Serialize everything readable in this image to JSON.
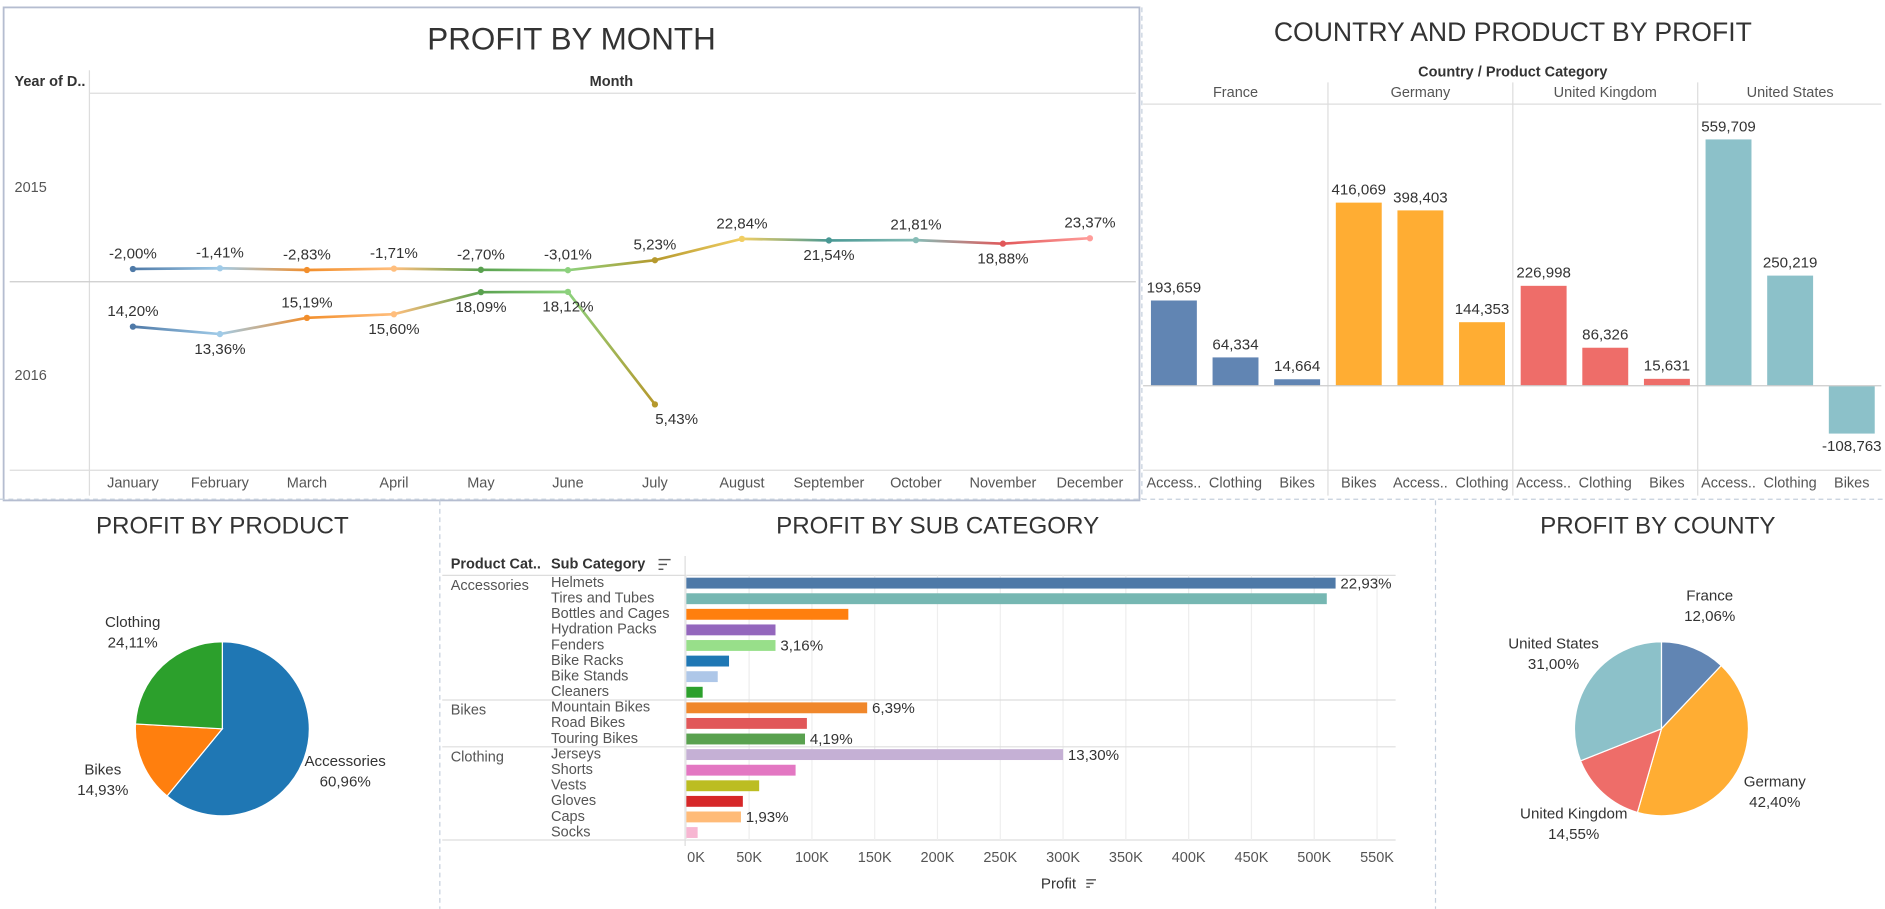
{
  "chart_data": [
    {
      "type": "line",
      "title": "PROFIT BY MONTH",
      "row_header": "Year of D..",
      "column_header": "Month",
      "categories": [
        "January",
        "February",
        "March",
        "April",
        "May",
        "June",
        "July",
        "August",
        "September",
        "October",
        "November",
        "December"
      ],
      "point_colors": [
        "#4e79a7",
        "#a0cbe8",
        "#f28e2b",
        "#ffbe7d",
        "#59a14f",
        "#8cd17d",
        "#b6992d",
        "#f1ce63",
        "#499894",
        "#86bcb6",
        "#e15759",
        "#ff9d9a"
      ],
      "series": [
        {
          "name": "2015",
          "ylim": [
            -13,
            142
          ],
          "values": [
            -2.0,
            -1.41,
            -2.83,
            -1.71,
            -2.7,
            -3.01,
            5.23,
            22.84,
            21.54,
            21.81,
            18.88,
            23.37
          ],
          "value_labels": [
            "-2,00%",
            "-1,41%",
            "-2,83%",
            "-1,71%",
            "-2,70%",
            "-3,01%",
            "5,23%",
            "22,84%",
            "21,54%",
            "21,81%",
            "18,88%",
            "23,37%"
          ]
        },
        {
          "name": "2016",
          "ylim": [
            -2,
            19.2
          ],
          "values": [
            14.2,
            13.36,
            15.19,
            15.6,
            18.09,
            18.12,
            5.43,
            null,
            null,
            null,
            null,
            null
          ],
          "value_labels": [
            "14,20%",
            "13,36%",
            "15,19%",
            "15,60%",
            "18,09%",
            "18,12%",
            "5,43%",
            null,
            null,
            null,
            null,
            null
          ]
        }
      ]
    },
    {
      "type": "bar",
      "title": "COUNTRY AND PRODUCT BY PROFIT",
      "header": "Country / Product Category",
      "ylim": [
        -192000,
        640000
      ],
      "groups": [
        {
          "name": "France",
          "color": "#6185b3",
          "categories": [
            "Access..",
            "Clothing",
            "Bikes"
          ],
          "values": [
            193659,
            64334,
            14664
          ],
          "value_labels": [
            "193,659",
            "64,334",
            "14,664"
          ]
        },
        {
          "name": "Germany",
          "color": "#ffad33",
          "categories": [
            "Bikes",
            "Access..",
            "Clothing"
          ],
          "values": [
            416069,
            398403,
            144353
          ],
          "value_labels": [
            "416,069",
            "398,403",
            "144,353"
          ]
        },
        {
          "name": "United Kingdom",
          "color": "#ee6d69",
          "categories": [
            "Access..",
            "Clothing",
            "Bikes"
          ],
          "values": [
            226998,
            86326,
            15631
          ],
          "value_labels": [
            "226,998",
            "86,326",
            "15,631"
          ]
        },
        {
          "name": "United States",
          "color": "#8cc1c9",
          "categories": [
            "Access..",
            "Clothing",
            "Bikes"
          ],
          "values": [
            559709,
            250219,
            -108763
          ],
          "value_labels": [
            "559,709",
            "250,219",
            "-108,763"
          ]
        }
      ]
    },
    {
      "type": "pie",
      "title": "PROFIT BY PRODUCT",
      "categories": [
        "Accessories",
        "Bikes",
        "Clothing"
      ],
      "values": [
        60.96,
        14.93,
        24.11
      ],
      "value_labels": [
        "60,96%",
        "14,93%",
        "24,11%"
      ],
      "colors": [
        "#1f77b4",
        "#ff7f0e",
        "#2ca02c"
      ]
    },
    {
      "type": "hbar",
      "title": "PROFIT BY SUB CATEGORY",
      "group_header": "Product Cat..",
      "category_header": "Sub Category",
      "x_label": "Profit",
      "xlim": [
        0,
        560000
      ],
      "xticks": [
        {
          "value": 0,
          "label": "0K"
        },
        {
          "value": 50000,
          "label": "50K"
        },
        {
          "value": 100000,
          "label": "100K"
        },
        {
          "value": 150000,
          "label": "150K"
        },
        {
          "value": 200000,
          "label": "200K"
        },
        {
          "value": 250000,
          "label": "250K"
        },
        {
          "value": 300000,
          "label": "300K"
        },
        {
          "value": 350000,
          "label": "350K"
        },
        {
          "value": 400000,
          "label": "400K"
        },
        {
          "value": 450000,
          "label": "450K"
        },
        {
          "value": 500000,
          "label": "500K"
        },
        {
          "value": 550000,
          "label": "550K"
        }
      ],
      "groups": [
        {
          "name": "Accessories",
          "categories": [
            "Helmets",
            "Tires and Tubes",
            "Bottles and Cages",
            "Hydration Packs",
            "Fenders",
            "Bike Racks",
            "Bike Stands",
            "Cleaners"
          ],
          "values": [
            517000,
            510000,
            129000,
            71000,
            71000,
            34000,
            25000,
            13000
          ],
          "colors": [
            "#4e79a7",
            "#76b7b2",
            "#ff7f0e",
            "#9467bd",
            "#98df8a",
            "#1f77b4",
            "#aec7e8",
            "#2ca02c"
          ],
          "percents": [
            22.93,
            null,
            null,
            null,
            3.16,
            null,
            null,
            null
          ],
          "percent_labels": [
            "22,93%",
            null,
            null,
            null,
            "3,16%",
            null,
            null,
            null
          ]
        },
        {
          "name": "Bikes",
          "categories": [
            "Mountain Bikes",
            "Road Bikes",
            "Touring Bikes"
          ],
          "values": [
            144000,
            96000,
            94500
          ],
          "colors": [
            "#f0872b",
            "#e15759",
            "#59a14f"
          ],
          "percents": [
            6.39,
            null,
            4.19
          ],
          "percent_labels": [
            "6,39%",
            null,
            "4,19%"
          ]
        },
        {
          "name": "Clothing",
          "categories": [
            "Jerseys",
            "Shorts",
            "Vests",
            "Gloves",
            "Caps",
            "Socks"
          ],
          "values": [
            300000,
            87000,
            58000,
            45000,
            43500,
            9000
          ],
          "colors": [
            "#c5b0d5",
            "#e377c2",
            "#bcbd22",
            "#d62728",
            "#ffbb78",
            "#f7b6d2"
          ],
          "percents": [
            13.3,
            null,
            null,
            null,
            1.93,
            null
          ],
          "percent_labels": [
            "13,30%",
            null,
            null,
            null,
            "1,93%",
            null
          ]
        }
      ]
    },
    {
      "type": "pie",
      "title": "PROFIT BY COUNTY",
      "categories": [
        "France",
        "Germany",
        "United Kingdom",
        "United States"
      ],
      "values": [
        12.06,
        42.4,
        14.55,
        31.0
      ],
      "value_labels": [
        "12,06%",
        "42,40%",
        "14,55%",
        "31,00%"
      ],
      "colors": [
        "#6185b3",
        "#ffad33",
        "#ee6d69",
        "#8cc1c9"
      ]
    }
  ]
}
